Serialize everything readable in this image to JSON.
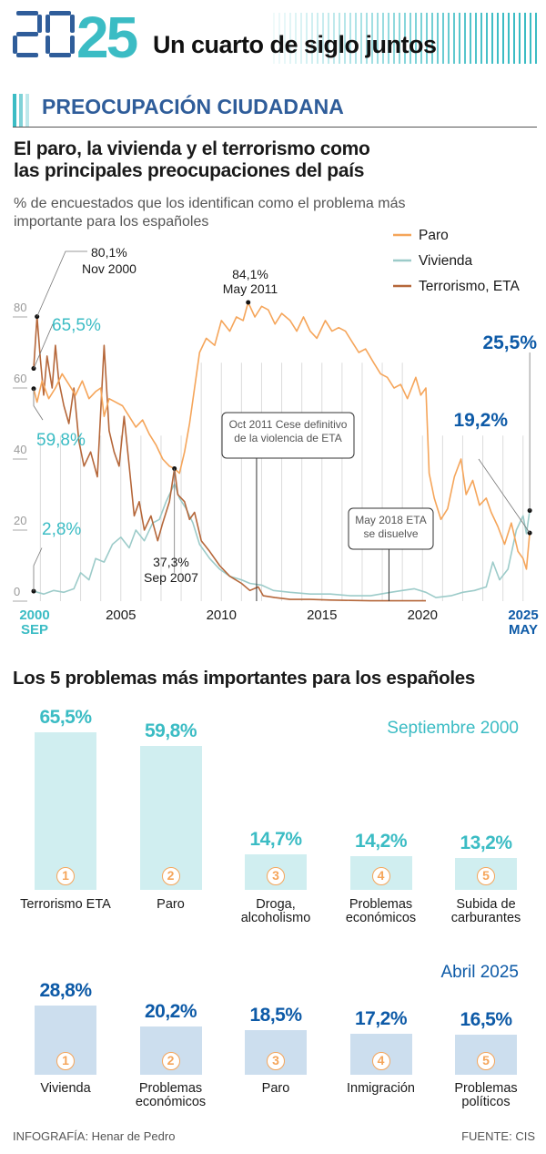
{
  "header": {
    "logo_text": "2025",
    "site_title": "Un cuarto de siglo juntos"
  },
  "section": {
    "title": "PREOCUPACIÓN CIUDADANA"
  },
  "colors": {
    "paro": "#f5a55a",
    "vivienda": "#9ccbc9",
    "terrorismo": "#b5673a",
    "teal": "#3bbcc4",
    "dark_blue": "#0d5aa7",
    "bar_2000": "#d0eef0",
    "bar_2025": "#ccdeee"
  },
  "chart_data": [
    {
      "type": "line",
      "title": "El paro, la vivienda y el terrorismo como las principales preocupaciones del país",
      "subtitle": "% de encuestados que los identifican como el problema más importante para los españoles",
      "ylim": [
        0,
        80
      ],
      "yticks": [
        "0",
        "20",
        "40",
        "60",
        "80"
      ],
      "xlim": [
        "2000-09",
        "2025-05"
      ],
      "xticks": [
        {
          "label": "2000",
          "sublabel": "SEP",
          "date": "2000-09"
        },
        {
          "label": "2005",
          "date": "2005-01"
        },
        {
          "label": "2010",
          "date": "2010-01"
        },
        {
          "label": "2015",
          "date": "2015-01"
        },
        {
          "label": "2020",
          "date": "2020-01"
        },
        {
          "label": "2025",
          "sublabel": "MAY",
          "date": "2025-05"
        }
      ],
      "grid": "vertical yearly",
      "legend_placement": "top-right",
      "series": [
        {
          "name": "Paro",
          "points": [
            [
              "2000-09",
              59.8
            ],
            [
              "2000-11",
              56
            ],
            [
              "2001-02",
              62
            ],
            [
              "2001-06",
              57
            ],
            [
              "2001-10",
              60
            ],
            [
              "2002-02",
              64
            ],
            [
              "2002-06",
              61
            ],
            [
              "2002-10",
              58
            ],
            [
              "2003-02",
              62
            ],
            [
              "2003-06",
              57
            ],
            [
              "2003-10",
              59
            ],
            [
              "2004-01",
              60
            ],
            [
              "2004-03",
              52
            ],
            [
              "2004-06",
              57
            ],
            [
              "2004-10",
              56
            ],
            [
              "2005-02",
              55
            ],
            [
              "2005-06",
              52
            ],
            [
              "2005-10",
              49
            ],
            [
              "2006-02",
              51
            ],
            [
              "2006-06",
              47
            ],
            [
              "2006-10",
              44
            ],
            [
              "2007-02",
              40
            ],
            [
              "2007-06",
              38
            ],
            [
              "2007-09",
              37.3
            ],
            [
              "2007-12",
              36
            ],
            [
              "2008-03",
              42
            ],
            [
              "2008-06",
              50
            ],
            [
              "2008-09",
              60
            ],
            [
              "2008-12",
              70
            ],
            [
              "2009-04",
              74
            ],
            [
              "2009-09",
              72
            ],
            [
              "2010-01",
              79
            ],
            [
              "2010-06",
              76
            ],
            [
              "2010-10",
              80
            ],
            [
              "2011-02",
              79
            ],
            [
              "2011-05",
              84.1
            ],
            [
              "2011-09",
              80
            ],
            [
              "2012-01",
              83
            ],
            [
              "2012-05",
              82
            ],
            [
              "2012-09",
              78
            ],
            [
              "2013-01",
              81
            ],
            [
              "2013-06",
              79
            ],
            [
              "2013-10",
              76
            ],
            [
              "2014-02",
              80
            ],
            [
              "2014-06",
              76
            ],
            [
              "2014-10",
              74
            ],
            [
              "2015-03",
              79
            ],
            [
              "2015-07",
              76
            ],
            [
              "2015-11",
              77
            ],
            [
              "2016-03",
              76
            ],
            [
              "2016-07",
              73
            ],
            [
              "2016-11",
              70
            ],
            [
              "2017-03",
              71
            ],
            [
              "2017-08",
              67
            ],
            [
              "2017-12",
              64
            ],
            [
              "2018-04",
              63
            ],
            [
              "2018-08",
              60
            ],
            [
              "2018-12",
              61
            ],
            [
              "2019-04",
              57
            ],
            [
              "2019-09",
              63
            ],
            [
              "2019-12",
              58
            ],
            [
              "2020-03",
              60
            ],
            [
              "2020-05",
              36
            ],
            [
              "2020-08",
              29
            ],
            [
              "2020-12",
              23
            ],
            [
              "2021-04",
              26
            ],
            [
              "2021-08",
              35
            ],
            [
              "2021-12",
              40
            ],
            [
              "2022-03",
              30
            ],
            [
              "2022-07",
              34
            ],
            [
              "2022-11",
              27
            ],
            [
              "2023-03",
              29
            ],
            [
              "2023-06",
              25
            ],
            [
              "2023-10",
              21
            ],
            [
              "2024-02",
              16
            ],
            [
              "2024-06",
              22
            ],
            [
              "2024-10",
              14
            ],
            [
              "2025-01",
              12
            ],
            [
              "2025-03",
              9
            ],
            [
              "2025-05",
              19.2
            ]
          ]
        },
        {
          "name": "Vivienda",
          "points": [
            [
              "2000-09",
              2.8
            ],
            [
              "2001-03",
              2
            ],
            [
              "2001-09",
              3
            ],
            [
              "2002-03",
              2.5
            ],
            [
              "2002-09",
              3.5
            ],
            [
              "2003-01",
              8
            ],
            [
              "2003-06",
              6
            ],
            [
              "2003-10",
              12
            ],
            [
              "2004-03",
              11
            ],
            [
              "2004-08",
              16
            ],
            [
              "2005-01",
              18
            ],
            [
              "2005-06",
              15
            ],
            [
              "2005-10",
              20
            ],
            [
              "2006-03",
              17
            ],
            [
              "2006-08",
              22
            ],
            [
              "2006-12",
              23
            ],
            [
              "2007-04",
              28
            ],
            [
              "2007-09",
              33
            ],
            [
              "2007-12",
              29
            ],
            [
              "2008-04",
              26
            ],
            [
              "2008-08",
              22
            ],
            [
              "2008-12",
              16
            ],
            [
              "2009-06",
              12
            ],
            [
              "2009-12",
              9
            ],
            [
              "2010-06",
              7
            ],
            [
              "2011-01",
              6
            ],
            [
              "2011-06",
              5
            ],
            [
              "2012-01",
              4.5
            ],
            [
              "2012-08",
              3
            ],
            [
              "2013-06",
              2.5
            ],
            [
              "2014-06",
              2
            ],
            [
              "2015-06",
              2
            ],
            [
              "2016-06",
              1.5
            ],
            [
              "2017-06",
              1.5
            ],
            [
              "2018-06",
              2.5
            ],
            [
              "2019-01",
              3
            ],
            [
              "2019-08",
              3.5
            ],
            [
              "2020-03",
              2.5
            ],
            [
              "2020-09",
              1
            ],
            [
              "2021-06",
              1.5
            ],
            [
              "2022-01",
              2.5
            ],
            [
              "2022-08",
              3
            ],
            [
              "2023-03",
              4
            ],
            [
              "2023-07",
              11
            ],
            [
              "2023-11",
              6
            ],
            [
              "2024-04",
              9
            ],
            [
              "2024-09",
              20
            ],
            [
              "2025-01",
              24
            ],
            [
              "2025-03",
              19
            ],
            [
              "2025-05",
              25.5
            ]
          ]
        },
        {
          "name": "Terrorismo, ETA",
          "points": [
            [
              "2000-09",
              65.5
            ],
            [
              "2000-11",
              80.1
            ],
            [
              "2001-01",
              68
            ],
            [
              "2001-03",
              58
            ],
            [
              "2001-05",
              69
            ],
            [
              "2001-08",
              60
            ],
            [
              "2001-10",
              72
            ],
            [
              "2001-12",
              62
            ],
            [
              "2002-03",
              55
            ],
            [
              "2002-06",
              50
            ],
            [
              "2002-09",
              60
            ],
            [
              "2002-12",
              45
            ],
            [
              "2003-03",
              38
            ],
            [
              "2003-07",
              42
            ],
            [
              "2003-11",
              35
            ],
            [
              "2004-03",
              72
            ],
            [
              "2004-06",
              48
            ],
            [
              "2004-09",
              42
            ],
            [
              "2004-12",
              38
            ],
            [
              "2005-03",
              52
            ],
            [
              "2005-06",
              38
            ],
            [
              "2005-09",
              24
            ],
            [
              "2005-12",
              28
            ],
            [
              "2006-03",
              20
            ],
            [
              "2006-07",
              24
            ],
            [
              "2006-11",
              17
            ],
            [
              "2007-02",
              22
            ],
            [
              "2007-06",
              28
            ],
            [
              "2007-09",
              37.3
            ],
            [
              "2007-11",
              30
            ],
            [
              "2008-03",
              28
            ],
            [
              "2008-06",
              23
            ],
            [
              "2008-09",
              25
            ],
            [
              "2009-01",
              17
            ],
            [
              "2009-06",
              14
            ],
            [
              "2009-12",
              10
            ],
            [
              "2010-06",
              7
            ],
            [
              "2011-01",
              5
            ],
            [
              "2011-06",
              3
            ],
            [
              "2011-11",
              4
            ],
            [
              "2012-02",
              1.5
            ],
            [
              "2012-09",
              1
            ],
            [
              "2013-06",
              0.5
            ],
            [
              "2014-06",
              0.5
            ],
            [
              "2015-06",
              0.3
            ],
            [
              "2016-06",
              0.2
            ],
            [
              "2017-06",
              0.1
            ],
            [
              "2018-06",
              0.1
            ],
            [
              "2020-03",
              0.1
            ]
          ]
        }
      ],
      "annotations": [
        {
          "value": "80,1%",
          "date": "Nov 2000"
        },
        {
          "value": "84,1%",
          "date": "May 2011"
        },
        {
          "value": "37,3%",
          "date": "Sep 2007"
        },
        {
          "value": "65,5%"
        },
        {
          "value": "59,8%"
        },
        {
          "value": "2,8%"
        },
        {
          "value": "25,5%"
        },
        {
          "value": "19,2%"
        },
        {
          "text": "Oct 2011 Cese definitivo de la violencia de ETA",
          "date": "2011-10"
        },
        {
          "text": "May 2018 ETA se disuelve",
          "date": "2018-05"
        }
      ]
    },
    {
      "type": "bar",
      "title": "Los 5 problemas más importantes para los españoles",
      "period": "Septiembre 2000",
      "categories": [
        "Terrorismo ETA",
        "Paro",
        "Droga, alcoholismo",
        "Problemas económicos",
        "Subida de carburantes"
      ],
      "values": [
        65.5,
        59.8,
        14.7,
        14.2,
        13.2
      ],
      "value_labels": [
        "65,5%",
        "59,8%",
        "14,7%",
        "14,2%",
        "13,2%"
      ],
      "ranks": [
        "1",
        "2",
        "3",
        "4",
        "5"
      ]
    },
    {
      "type": "bar",
      "period": "Abril 2025",
      "categories": [
        "Vivienda",
        "Problemas económicos",
        "Paro",
        "Inmigración",
        "Problemas políticos"
      ],
      "values": [
        28.8,
        20.2,
        18.5,
        17.2,
        16.5
      ],
      "value_labels": [
        "28,8%",
        "20,2%",
        "18,5%",
        "17,2%",
        "16,5%"
      ],
      "ranks": [
        "1",
        "2",
        "3",
        "4",
        "5"
      ]
    }
  ],
  "footer": {
    "credit": "INFOGRAFÍA: Henar de Pedro",
    "source": "FUENTE: CIS"
  }
}
